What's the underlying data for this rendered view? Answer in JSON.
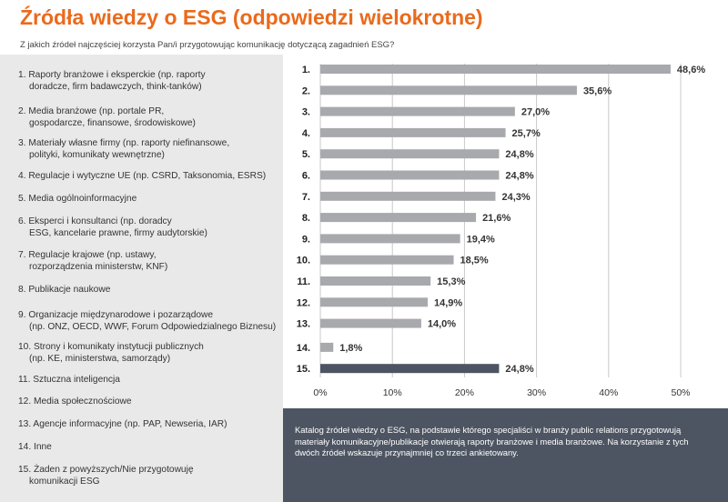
{
  "title": "Źródła wiedzy o ESG (odpowiedzi wielokrotne)",
  "subtitle": "Z jakich źródeł najczęściej korzysta Pan/i przygotowując komunikację dotyczącą zagadnień ESG?",
  "legend": [
    {
      "rank": "1.",
      "lines": [
        "Raporty branżowe i eksperckie (np. raporty",
        "doradcze, firm badawczych, think-tanków)"
      ]
    },
    {
      "rank": "2.",
      "lines": [
        "Media branżowe (np. portale PR,",
        "gospodarcze, finansowe, środowiskowe)"
      ]
    },
    {
      "rank": "3.",
      "lines": [
        "Materiały własne firmy (np. raporty niefinansowe,",
        "polityki, komunikaty wewnętrzne)"
      ]
    },
    {
      "rank": "4.",
      "lines": [
        "Regulacje i wytyczne UE (np. CSRD, Taksonomia, ESRS)"
      ]
    },
    {
      "rank": "5.",
      "lines": [
        "Media ogólnoinformacyjne"
      ]
    },
    {
      "rank": "6.",
      "lines": [
        "Eksperci i konsultanci (np. doradcy",
        "ESG, kancelarie prawne, firmy audytorskie)"
      ]
    },
    {
      "rank": "7.",
      "lines": [
        "Regulacje krajowe (np. ustawy,",
        "rozporządzenia ministerstw, KNF)"
      ]
    },
    {
      "rank": "8.",
      "lines": [
        "Publikacje naukowe"
      ]
    },
    {
      "rank": "9.",
      "lines": [
        "Organizacje międzynarodowe i pozarządowe",
        "(np. ONZ, OECD, WWF, Forum Odpowiedzialnego Biznesu)"
      ]
    },
    {
      "rank": "10.",
      "lines": [
        "Strony i komunikaty instytucji publicznych",
        "(np. KE, ministerstwa, samorządy)"
      ]
    },
    {
      "rank": "11.",
      "lines": [
        "Sztuczna inteligencja"
      ]
    },
    {
      "rank": "12.",
      "lines": [
        "Media społecznościowe"
      ]
    },
    {
      "rank": "13.",
      "lines": [
        "Agencje informacyjne (np. PAP, Newseria, IAR)"
      ]
    },
    {
      "rank": "14.",
      "lines": [
        "Inne"
      ]
    },
    {
      "rank": "15.",
      "lines": [
        "Żaden z powyższych/Nie przygotowuję",
        "komunikacji ESG"
      ]
    }
  ],
  "note": "Katalog źródeł wiedzy o ESG, na podstawie którego specjaliści w branży public relations przygotowują materiały komunikacyjne/publikacje otwierają raporty branżowe i media branżowe. Na korzystanie z tych dwóch źródeł wskazuje przynajmniej co trzeci ankietowany.",
  "chart_data": {
    "type": "bar",
    "orientation": "horizontal",
    "title": "Źródła wiedzy o ESG (odpowiedzi wielokrotne)",
    "categories": [
      "1.",
      "2.",
      "3.",
      "4.",
      "5.",
      "6.",
      "7.",
      "8.",
      "9.",
      "10.",
      "11.",
      "12.",
      "13.",
      "14.",
      "15."
    ],
    "values": [
      48.6,
      35.6,
      27.0,
      25.7,
      24.8,
      24.8,
      24.3,
      21.6,
      19.4,
      18.5,
      15.3,
      14.9,
      14.0,
      1.8,
      24.8
    ],
    "value_labels": [
      "48,6%",
      "35,6%",
      "27,0%",
      "25,7%",
      "24,8%",
      "24,8%",
      "24,3%",
      "21,6%",
      "19,4%",
      "18,5%",
      "15,3%",
      "14,9%",
      "14,0%",
      "1,8%",
      "24,8%"
    ],
    "xlim": [
      0,
      50
    ],
    "xticks": [
      0,
      10,
      20,
      30,
      40,
      50
    ],
    "xtick_labels": [
      "0%",
      "10%",
      "20%",
      "30%",
      "40%",
      "50%"
    ],
    "xlabel": "",
    "ylabel": "",
    "colors": {
      "bar": "#a7a9ac",
      "highlight": "#4d5562",
      "grid": "#c8c8c8"
    },
    "highlight_index": 14
  }
}
